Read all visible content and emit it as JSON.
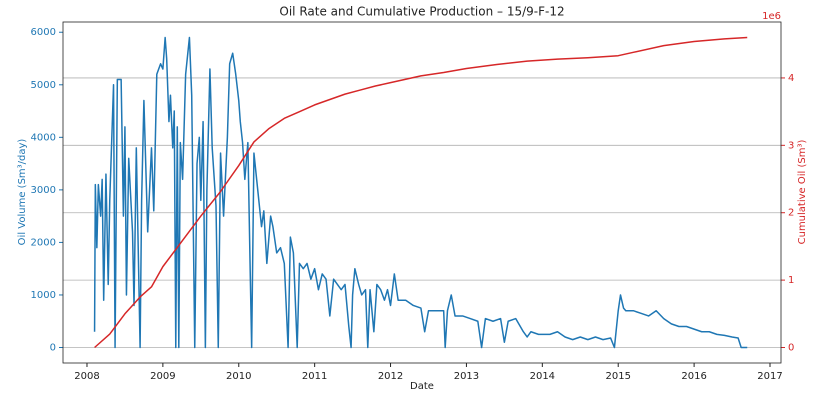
{
  "chart_data": {
    "type": "line",
    "title": "Oil Rate and Cumulative Production – 15/9-F-12",
    "xlabel": "Date",
    "ylabel": "Oil Volume (Sm³/day)",
    "y2label": "Cumulative Oil (Sm³)",
    "y2_offset_label": "1e6",
    "xlim": [
      2007.684,
      2017.145
    ],
    "xticks": [
      2008,
      2009,
      2010,
      2011,
      2012,
      2013,
      2014,
      2015,
      2016,
      2017
    ],
    "ylim": [
      -295,
      6195
    ],
    "yticks": [
      0,
      1000,
      2000,
      3000,
      4000,
      5000,
      6000
    ],
    "y2lim": [
      -0.23,
      4.83
    ],
    "y2ticks": [
      0,
      1,
      2,
      3,
      4
    ],
    "grid": "y2",
    "series": [
      {
        "color": "#1f77b4",
        "x": [
          2008.1,
          2008.11,
          2008.13,
          2008.15,
          2008.18,
          2008.2,
          2008.22,
          2008.25,
          2008.28,
          2008.3,
          2008.35,
          2008.37,
          2008.4,
          2008.45,
          2008.48,
          2008.5,
          2008.52,
          2008.55,
          2008.6,
          2008.62,
          2008.65,
          2008.7,
          2008.72,
          2008.75,
          2008.8,
          2008.85,
          2008.88,
          2008.92,
          2008.97,
          2009.0,
          2009.03,
          2009.05,
          2009.08,
          2009.1,
          2009.13,
          2009.15,
          2009.17,
          2009.19,
          2009.21,
          2009.23,
          2009.26,
          2009.3,
          2009.35,
          2009.38,
          2009.42,
          2009.45,
          2009.48,
          2009.5,
          2009.53,
          2009.56,
          2009.58,
          2009.62,
          2009.65,
          2009.7,
          2009.73,
          2009.76,
          2009.8,
          2009.85,
          2009.88,
          2009.92,
          2009.96,
          2010.0,
          2010.02,
          2010.05,
          2010.08,
          2010.12,
          2010.15,
          2010.17,
          2010.2,
          2010.25,
          2010.3,
          2010.33,
          2010.37,
          2010.42,
          2010.45,
          2010.5,
          2010.55,
          2010.6,
          2010.65,
          2010.68,
          2010.72,
          2010.77,
          2010.8,
          2010.85,
          2010.9,
          2010.95,
          2011.0,
          2011.05,
          2011.1,
          2011.15,
          2011.2,
          2011.25,
          2011.3,
          2011.35,
          2011.4,
          2011.45,
          2011.48,
          2011.5,
          2011.53,
          2011.58,
          2011.62,
          2011.67,
          2011.7,
          2011.73,
          2011.78,
          2011.82,
          2011.87,
          2011.92,
          2011.96,
          2012.0,
          2012.05,
          2012.1,
          2012.2,
          2012.3,
          2012.4,
          2012.45,
          2012.5,
          2012.6,
          2012.7,
          2012.72,
          2012.75,
          2012.8,
          2012.85,
          2012.95,
          2013.05,
          2013.15,
          2013.2,
          2013.25,
          2013.35,
          2013.45,
          2013.5,
          2013.55,
          2013.65,
          2013.75,
          2013.8,
          2013.85,
          2013.95,
          2014.1,
          2014.2,
          2014.3,
          2014.4,
          2014.5,
          2014.6,
          2014.7,
          2014.8,
          2014.9,
          2014.95,
          2015.0,
          2015.03,
          2015.07,
          2015.1,
          2015.2,
          2015.3,
          2015.4,
          2015.5,
          2015.6,
          2015.7,
          2015.8,
          2015.9,
          2016.0,
          2016.1,
          2016.2,
          2016.3,
          2016.4,
          2016.5,
          2016.58,
          2016.62,
          2016.7
        ],
        "values": [
          300,
          3100,
          1900,
          3100,
          2500,
          3200,
          900,
          3300,
          1200,
          2800,
          5000,
          0,
          5100,
          5100,
          2500,
          4200,
          1000,
          3600,
          2200,
          800,
          3800,
          0,
          2800,
          4700,
          2200,
          3800,
          2600,
          5200,
          5400,
          5300,
          5900,
          5500,
          4300,
          4800,
          3800,
          4500,
          0,
          4200,
          0,
          3900,
          3200,
          5200,
          5900,
          4800,
          0,
          3500,
          4000,
          2800,
          4300,
          0,
          3000,
          5300,
          3800,
          2700,
          0,
          3700,
          2500,
          4000,
          5400,
          5600,
          5200,
          4700,
          4300,
          3900,
          3200,
          3900,
          1500,
          0,
          3700,
          3000,
          2300,
          2600,
          1600,
          2500,
          2300,
          1800,
          1900,
          1600,
          0,
          2100,
          1800,
          0,
          1600,
          1500,
          1600,
          1300,
          1500,
          1100,
          1400,
          1300,
          600,
          1300,
          1200,
          1100,
          1200,
          400,
          0,
          1000,
          1500,
          1200,
          1000,
          1100,
          0,
          1100,
          300,
          1200,
          1100,
          900,
          1100,
          800,
          1400,
          900,
          900,
          800,
          750,
          300,
          700,
          700,
          700,
          0,
          700,
          1000,
          600,
          600,
          550,
          500,
          0,
          550,
          500,
          550,
          100,
          500,
          550,
          300,
          200,
          300,
          250,
          250,
          300,
          200,
          150,
          200,
          150,
          200,
          150,
          180,
          0,
          700,
          1000,
          750,
          700,
          700,
          650,
          600,
          700,
          550,
          450,
          400,
          400,
          350,
          300,
          300,
          250,
          230,
          200,
          180,
          0,
          0
        ]
      },
      {
        "color": "#d62728",
        "axis": "y2",
        "x": [
          2008.1,
          2008.3,
          2008.5,
          2008.7,
          2008.85,
          2009.0,
          2009.2,
          2009.5,
          2009.75,
          2010.0,
          2010.2,
          2010.4,
          2010.6,
          2010.8,
          2011.0,
          2011.2,
          2011.4,
          2011.6,
          2011.8,
          2012.0,
          2012.4,
          2012.7,
          2013.0,
          2013.4,
          2013.8,
          2014.2,
          2014.6,
          2015.0,
          2015.2,
          2015.6,
          2016.0,
          2016.4,
          2016.7
        ],
        "values": [
          0,
          0.2,
          0.5,
          0.75,
          0.9,
          1.2,
          1.5,
          1.95,
          2.3,
          2.7,
          3.05,
          3.25,
          3.4,
          3.5,
          3.6,
          3.68,
          3.76,
          3.82,
          3.88,
          3.93,
          4.03,
          4.08,
          4.14,
          4.2,
          4.25,
          4.28,
          4.3,
          4.33,
          4.38,
          4.48,
          4.54,
          4.58,
          4.6
        ]
      }
    ]
  }
}
